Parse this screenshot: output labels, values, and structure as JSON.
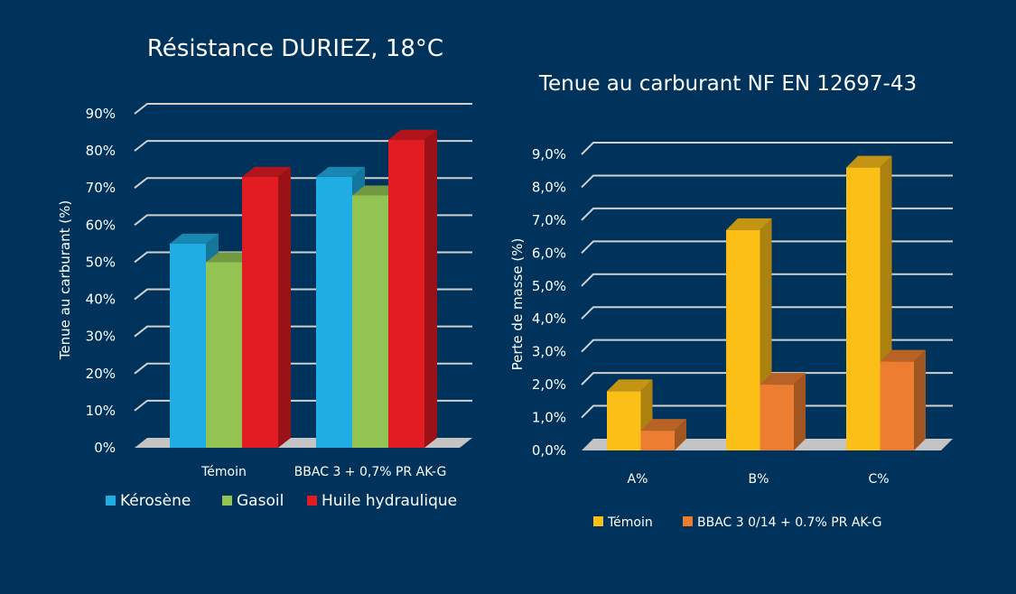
{
  "colors": {
    "background": "#00335b",
    "gridline": "#d0d0d0",
    "floor": "#c4c4c4"
  },
  "chart_data": [
    {
      "type": "bar",
      "title": "Résistance DURIEZ, 18°C",
      "xlabel": "",
      "ylabel": "Tenue au carburant (%)",
      "ylim": [
        0,
        90
      ],
      "yticks": [
        0,
        10,
        20,
        30,
        40,
        50,
        60,
        70,
        80,
        90
      ],
      "ytick_labels": [
        "0%",
        "10%",
        "20%",
        "30%",
        "40%",
        "50%",
        "60%",
        "70%",
        "80%",
        "90%"
      ],
      "categories": [
        "Témoin",
        "BBAC 3 + 0,7% PR AK-G"
      ],
      "series": [
        {
          "name": "Kérosène",
          "color": "#1fade4",
          "values": [
            55,
            73
          ]
        },
        {
          "name": "Gasoil",
          "color": "#92c353",
          "values": [
            50,
            68
          ]
        },
        {
          "name": "Huile hydraulique",
          "color": "#e31b23",
          "values": [
            73,
            83
          ]
        }
      ],
      "legend": "bottom",
      "grid": true
    },
    {
      "type": "bar",
      "title": "Tenue au carburant NF EN 12697-43",
      "xlabel": "",
      "ylabel": "Perte de masse (%)",
      "ylim": [
        0,
        9
      ],
      "yticks": [
        0,
        1,
        2,
        3,
        4,
        5,
        6,
        7,
        8,
        9
      ],
      "ytick_labels": [
        "0,0%",
        "1,0%",
        "2,0%",
        "3,0%",
        "4,0%",
        "5,0%",
        "6,0%",
        "7,0%",
        "8,0%",
        "9,0%"
      ],
      "categories": [
        "A%",
        "B%",
        "C%"
      ],
      "series": [
        {
          "name": "Témoin",
          "color": "#fbbf17",
          "values": [
            1.8,
            6.7,
            8.6
          ]
        },
        {
          "name": "BBAC 3 0/14 + 0.7% PR AK-G",
          "color": "#ed7d31",
          "values": [
            0.6,
            2.0,
            2.7
          ]
        }
      ],
      "legend": "bottom",
      "grid": true
    }
  ]
}
